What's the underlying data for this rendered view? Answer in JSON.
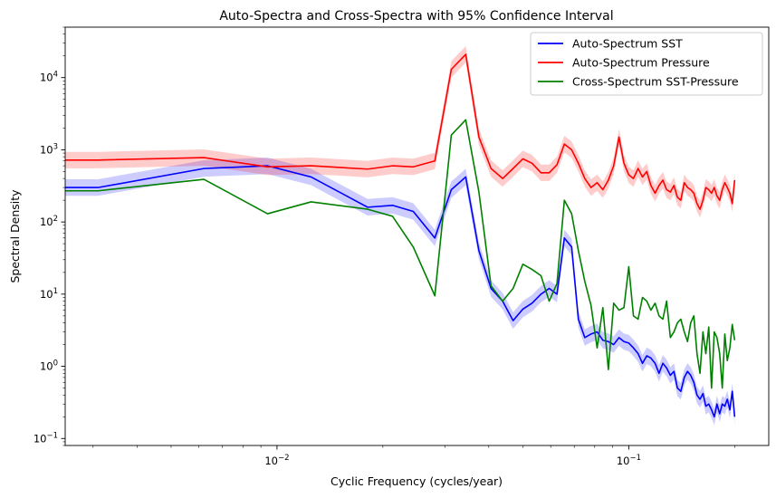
{
  "chart_data": {
    "type": "line",
    "title": "Auto-Spectra and Cross-Spectra with 95% Confidence Interval",
    "xlabel": "Cyclic Frequency (cycles/year)",
    "ylabel": "Spectral Density",
    "xscale": "log",
    "yscale": "log",
    "xlim": [
      0.0025,
      0.25
    ],
    "ylim": [
      0.08,
      50000
    ],
    "grid": false,
    "legend_position": "top-right",
    "x_major_ticks": [
      {
        "value": 0.01,
        "base": "10",
        "exp": "−2"
      },
      {
        "value": 0.1,
        "base": "10",
        "exp": "−1"
      }
    ],
    "y_major_ticks": [
      {
        "value": 0.1,
        "base": "10",
        "exp": "−1"
      },
      {
        "value": 1,
        "base": "10",
        "exp": "0"
      },
      {
        "value": 10,
        "base": "10",
        "exp": "1"
      },
      {
        "value": 100,
        "base": "10",
        "exp": "2"
      },
      {
        "value": 1000,
        "base": "10",
        "exp": "3"
      },
      {
        "value": 10000,
        "base": "10",
        "exp": "4"
      }
    ],
    "ci_band_factor": 1.3,
    "series": [
      {
        "name": "Auto-Spectrum SST",
        "color": "#0000ff",
        "ci": true,
        "x": [
          0.0025,
          0.0031,
          0.0062,
          0.0094,
          0.0125,
          0.0181,
          0.0213,
          0.0244,
          0.0281,
          0.0313,
          0.0344,
          0.0375,
          0.0406,
          0.0438,
          0.0469,
          0.05,
          0.0531,
          0.0563,
          0.0594,
          0.0625,
          0.0656,
          0.0688,
          0.0719,
          0.075,
          0.0781,
          0.0813,
          0.0844,
          0.0875,
          0.0906,
          0.0938,
          0.0969,
          0.1,
          0.1031,
          0.1063,
          0.1094,
          0.1125,
          0.1156,
          0.1188,
          0.1219,
          0.125,
          0.1281,
          0.1313,
          0.1344,
          0.1375,
          0.1406,
          0.1438,
          0.1469,
          0.15,
          0.1531,
          0.1563,
          0.1594,
          0.1625,
          0.1656,
          0.1688,
          0.1719,
          0.175,
          0.1781,
          0.1813,
          0.1844,
          0.1875,
          0.1906,
          0.1938,
          0.1969,
          0.2
        ],
        "y": [
          300,
          300,
          550,
          600,
          420,
          160,
          170,
          140,
          60,
          280,
          420,
          40,
          12,
          8,
          4.3,
          6.2,
          7.5,
          10,
          12,
          10,
          60,
          45,
          4.5,
          2.5,
          2.8,
          3,
          2.3,
          2.2,
          2,
          2.5,
          2.2,
          2.1,
          1.8,
          1.5,
          1.1,
          1.4,
          1.3,
          1.1,
          0.8,
          1.1,
          0.95,
          0.75,
          0.85,
          0.5,
          0.45,
          0.7,
          0.85,
          0.75,
          0.6,
          0.4,
          0.35,
          0.42,
          0.28,
          0.3,
          0.25,
          0.2,
          0.3,
          0.22,
          0.3,
          0.28,
          0.35,
          0.25,
          0.45,
          0.2
        ]
      },
      {
        "name": "Auto-Spectrum Pressure",
        "color": "#ff0000",
        "ci": true,
        "x": [
          0.0025,
          0.0031,
          0.0062,
          0.0094,
          0.0125,
          0.0181,
          0.0213,
          0.0244,
          0.0281,
          0.0313,
          0.0344,
          0.0375,
          0.0406,
          0.0438,
          0.0469,
          0.05,
          0.0531,
          0.0563,
          0.0594,
          0.0625,
          0.0656,
          0.0688,
          0.0719,
          0.075,
          0.0781,
          0.0813,
          0.0844,
          0.0875,
          0.0906,
          0.0938,
          0.0969,
          0.1,
          0.1031,
          0.1063,
          0.1094,
          0.1125,
          0.1156,
          0.1188,
          0.1219,
          0.125,
          0.1281,
          0.1313,
          0.1344,
          0.1375,
          0.1406,
          0.1438,
          0.1469,
          0.15,
          0.1531,
          0.1563,
          0.1594,
          0.1625,
          0.1656,
          0.1688,
          0.1719,
          0.175,
          0.1781,
          0.1813,
          0.1844,
          0.1875,
          0.1906,
          0.1938,
          0.1969,
          0.2
        ],
        "y": [
          720,
          720,
          780,
          580,
          600,
          540,
          600,
          580,
          700,
          13000,
          21000,
          1500,
          550,
          400,
          550,
          750,
          650,
          480,
          480,
          620,
          1200,
          1000,
          650,
          400,
          300,
          350,
          280,
          380,
          600,
          1500,
          650,
          450,
          400,
          550,
          420,
          500,
          320,
          250,
          320,
          380,
          280,
          260,
          320,
          220,
          200,
          350,
          300,
          280,
          250,
          180,
          150,
          200,
          300,
          280,
          250,
          300,
          230,
          200,
          280,
          350,
          300,
          250,
          180,
          380
        ]
      },
      {
        "name": "Cross-Spectrum SST-Pressure",
        "color": "#008000",
        "ci": false,
        "x": [
          0.0025,
          0.0031,
          0.0062,
          0.0094,
          0.0125,
          0.0181,
          0.0213,
          0.0244,
          0.0281,
          0.0313,
          0.0344,
          0.0375,
          0.0406,
          0.0438,
          0.0469,
          0.05,
          0.0531,
          0.0563,
          0.0594,
          0.0625,
          0.0656,
          0.0688,
          0.0719,
          0.075,
          0.0781,
          0.0813,
          0.0844,
          0.0875,
          0.0906,
          0.0938,
          0.0969,
          0.1,
          0.1031,
          0.1063,
          0.1094,
          0.1125,
          0.1156,
          0.1188,
          0.1219,
          0.125,
          0.1281,
          0.1313,
          0.1344,
          0.1375,
          0.1406,
          0.1438,
          0.1469,
          0.15,
          0.1531,
          0.1563,
          0.1594,
          0.1625,
          0.1656,
          0.1688,
          0.1719,
          0.175,
          0.1781,
          0.1813,
          0.1844,
          0.1875,
          0.1906,
          0.1938,
          0.1969,
          0.2
        ],
        "y": [
          270,
          270,
          390,
          130,
          190,
          150,
          120,
          45,
          9.5,
          1600,
          2600,
          260,
          13,
          8,
          12,
          26,
          22,
          18,
          8,
          14,
          200,
          130,
          40,
          15,
          7,
          1.8,
          6.5,
          0.9,
          7.5,
          6,
          6.5,
          24,
          5,
          4.5,
          9,
          8,
          6,
          7.5,
          5,
          4.5,
          8,
          2.5,
          3,
          4,
          4.5,
          3,
          2.2,
          4,
          5,
          1.5,
          0.8,
          3,
          1.5,
          3.5,
          0.5,
          3,
          2.5,
          1.5,
          0.5,
          2.8,
          1.2,
          1.8,
          3.8,
          2.3
        ]
      }
    ]
  }
}
